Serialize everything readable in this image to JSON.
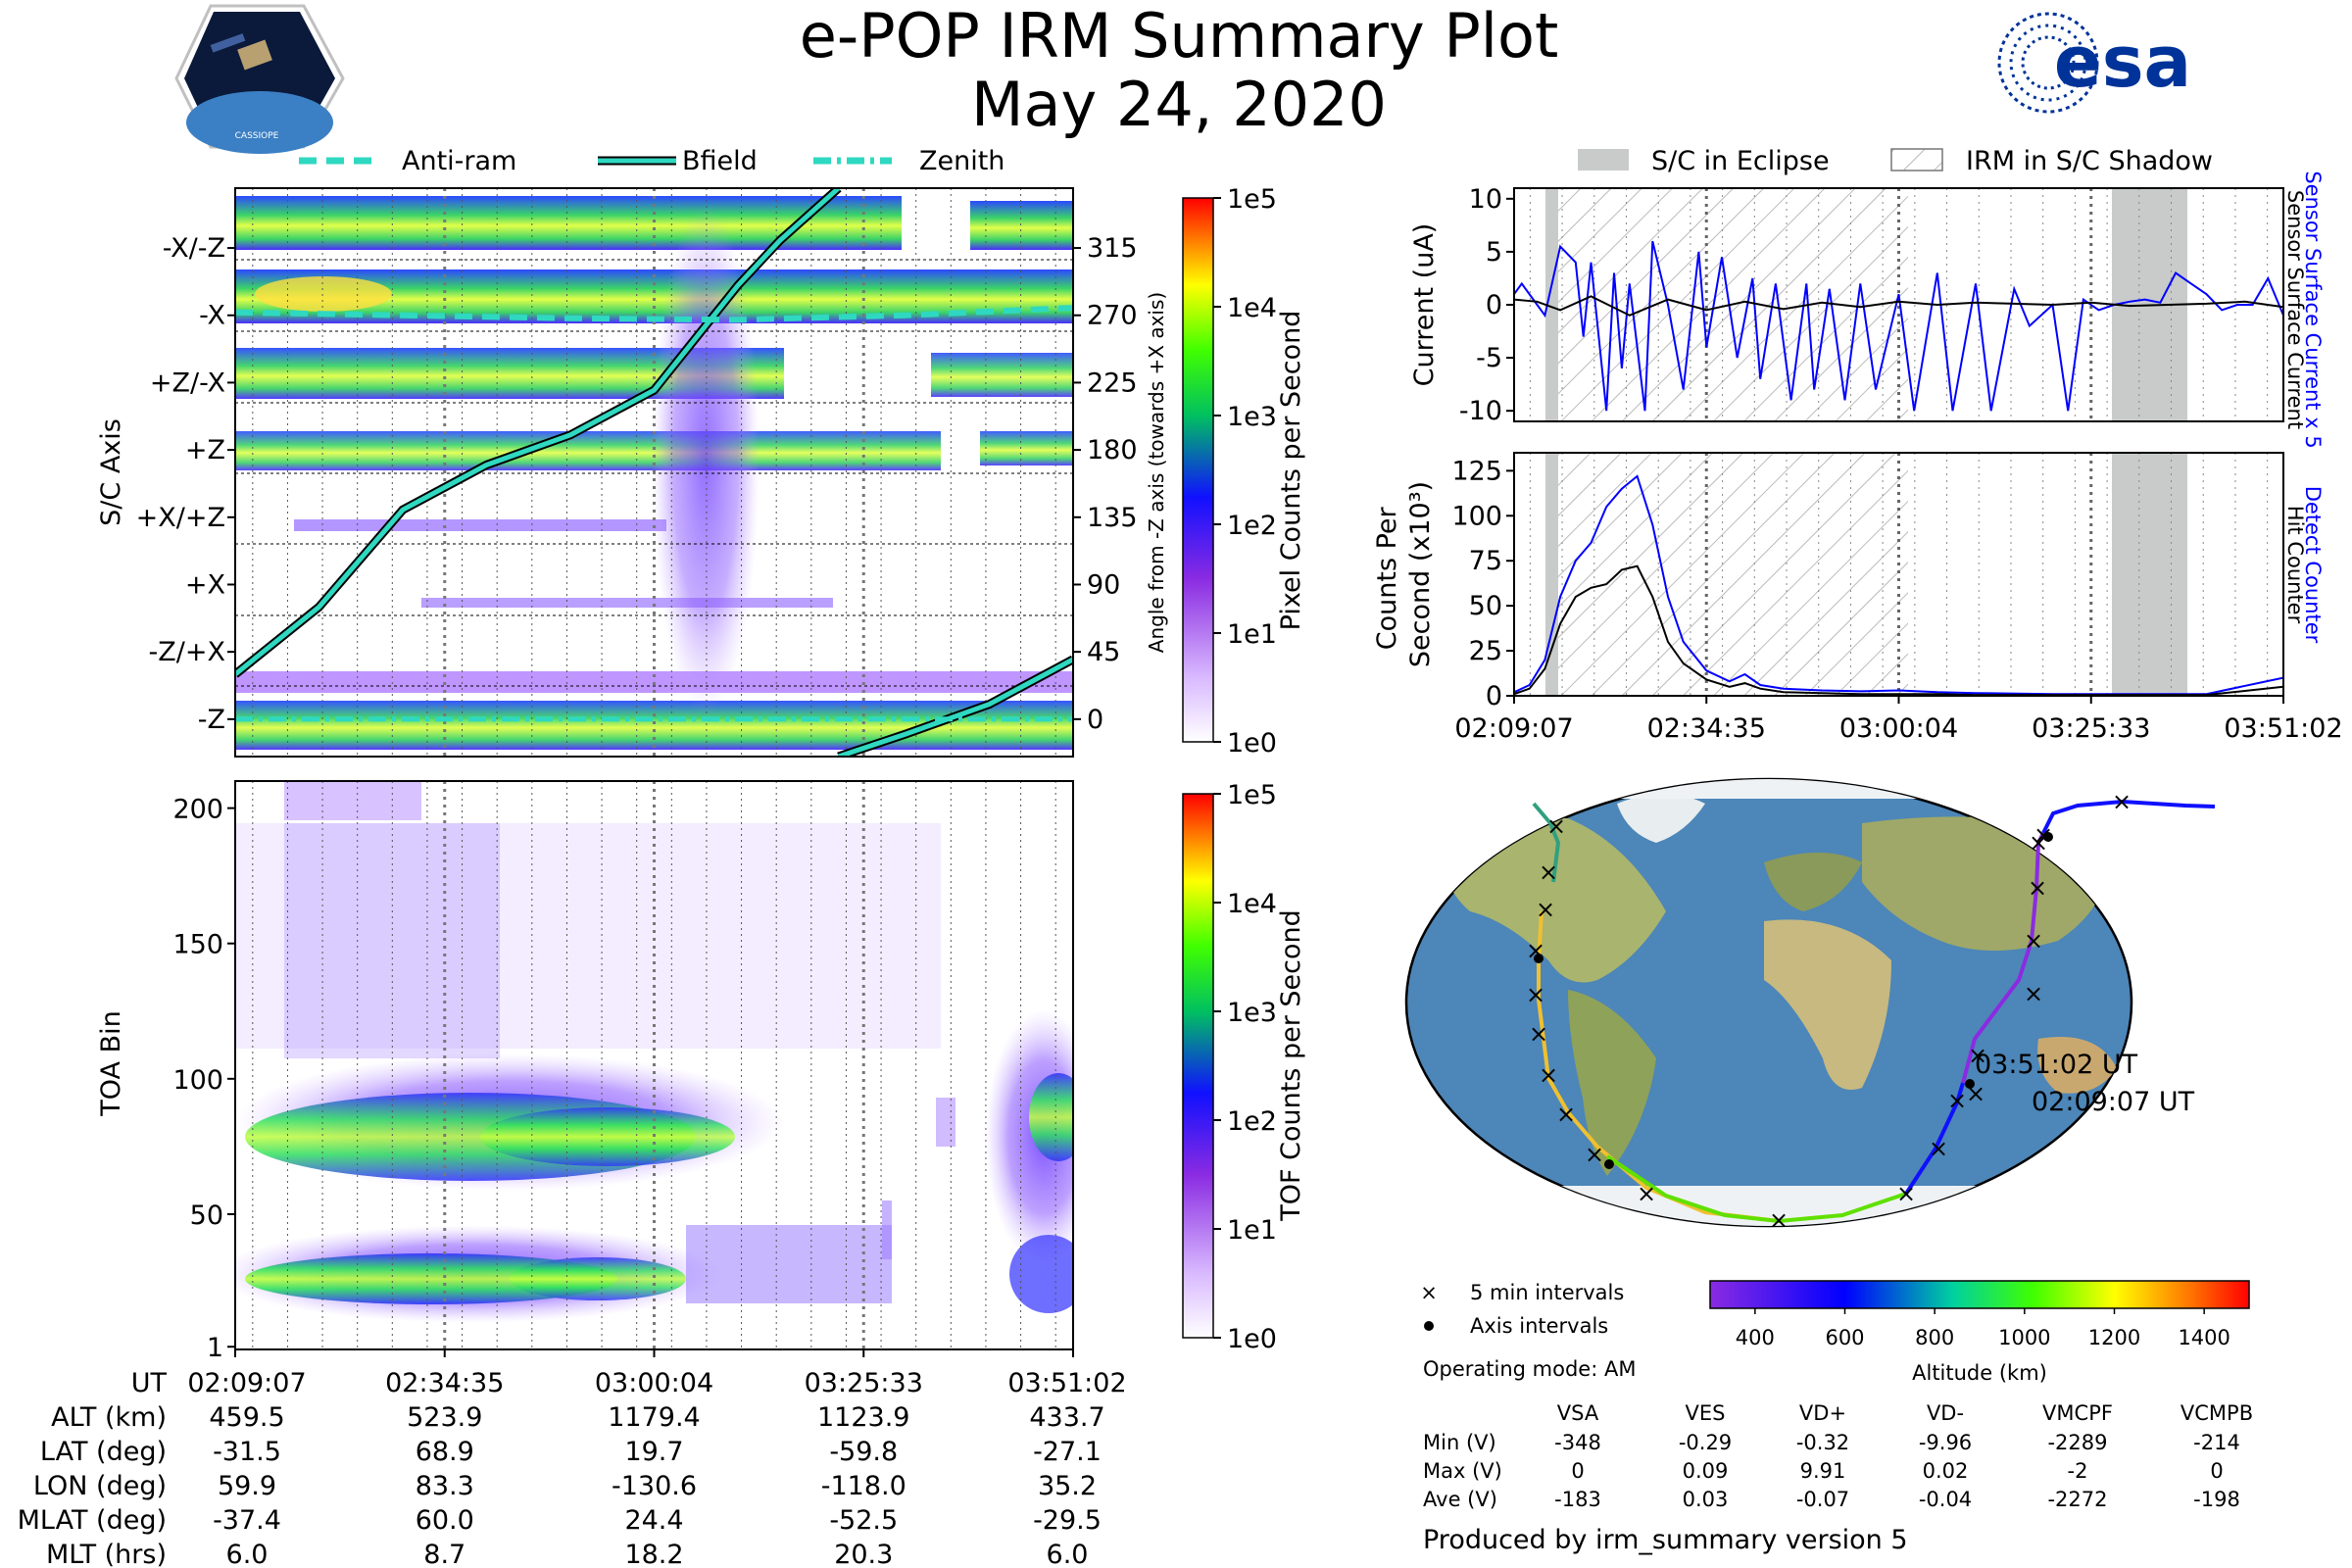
{
  "header": {
    "title": "e-POP IRM Summary Plot",
    "date": "May 24, 2020",
    "left_logo_text": "CASSIOPE",
    "right_logo_text": "esa"
  },
  "legend_top_left": [
    {
      "label": "Anti-ram",
      "style": "dashed"
    },
    {
      "label": "Bfield",
      "style": "solid"
    },
    {
      "label": "Zenith",
      "style": "dashdot"
    }
  ],
  "legend_top_right": [
    {
      "label": "S/C in Eclipse"
    },
    {
      "label": "IRM in S/C Shadow"
    }
  ],
  "colors": {
    "trace_cyan": "#2fd8c0",
    "blue_trace": "#0000ff",
    "eclipse_gray": "#c8cbca"
  },
  "chart_data": [
    {
      "type": "heatmap",
      "id": "sc-axis",
      "ylabel": "S/C Axis",
      "ytick_labels": [
        "-X/-Z",
        "-X",
        "+Z/-X",
        "+Z",
        "+X/+Z",
        "+X",
        "-Z/+X",
        "-Z"
      ],
      "right_ylabel": "Angle from -Z axis (towards +X axis)",
      "right_ticks": [
        315,
        270,
        225,
        180,
        135,
        90,
        45,
        0
      ],
      "right_ylim": [
        -25,
        355
      ],
      "colorbar_label": "Pixel Counts per Second",
      "colorbar_ticks": [
        "1e5",
        "1e4",
        "1e3",
        "1e2",
        "1e1",
        "1e0"
      ],
      "lines": {
        "Bfield": {
          "x_frac": [
            0,
            0.1,
            0.2,
            0.3,
            0.4,
            0.5,
            0.55,
            0.6,
            0.65,
            0.72
          ],
          "angle": [
            30,
            75,
            140,
            170,
            190,
            220,
            255,
            290,
            320,
            355
          ]
        },
        "Bfield_wrap": {
          "x_frac": [
            0.72,
            0.8,
            0.9,
            1.0
          ],
          "angle": [
            -25,
            -10,
            10,
            40
          ]
        },
        "Anti-ram": {
          "x_frac": [
            0,
            0.2,
            0.4,
            0.6,
            0.8,
            1.0
          ],
          "angle": [
            272,
            270,
            268,
            267,
            270,
            275
          ]
        },
        "Zenith": {
          "x_frac": [
            0,
            0.3,
            0.6,
            1.0
          ],
          "angle": [
            0,
            0,
            0,
            0
          ]
        }
      }
    },
    {
      "type": "heatmap",
      "id": "toa",
      "ylabel": "TOA Bin",
      "yticks": [
        1,
        50,
        100,
        150,
        200
      ],
      "ylim": [
        0,
        210
      ],
      "colorbar_label": "TOF Counts per Second",
      "colorbar_ticks": [
        "1e5",
        "1e4",
        "1e3",
        "1e2",
        "1e1",
        "1e0"
      ]
    },
    {
      "type": "line",
      "id": "current",
      "ylabel": "Current (uA)",
      "ylim": [
        -11,
        11
      ],
      "yticks": [
        10,
        5,
        0,
        -5,
        -10
      ],
      "right_label_1": "Sensor Surface Current x 5",
      "right_label_2": "Sensor Surface Current",
      "series": [
        {
          "name": "Sensor Surface Current x 5",
          "color": "#0000ff",
          "x_frac": [
            0,
            0.01,
            0.03,
            0.04,
            0.06,
            0.08,
            0.09,
            0.1,
            0.12,
            0.13,
            0.14,
            0.15,
            0.17,
            0.18,
            0.2,
            0.22,
            0.24,
            0.25,
            0.27,
            0.29,
            0.31,
            0.32,
            0.34,
            0.36,
            0.38,
            0.39,
            0.41,
            0.43,
            0.45,
            0.47,
            0.5,
            0.52,
            0.55,
            0.57,
            0.6,
            0.62,
            0.65,
            0.67,
            0.7,
            0.72,
            0.74,
            0.76,
            0.78,
            0.8,
            0.82,
            0.84,
            0.86,
            0.88,
            0.9,
            0.92,
            0.94,
            0.96,
            0.98,
            1.0
          ],
          "y": [
            1,
            2,
            0,
            -1,
            5.5,
            4,
            -3,
            4,
            -10,
            3,
            -6,
            2,
            -10,
            6,
            0,
            -8,
            5,
            -4,
            4.5,
            -5,
            2.5,
            -7,
            2,
            -9,
            2,
            -8,
            1.5,
            -9,
            2,
            -8,
            1,
            -10,
            3,
            -10,
            2,
            -10,
            1.5,
            -2,
            0,
            -10,
            0.5,
            -0.5,
            0,
            0.3,
            0.5,
            0.2,
            3,
            2,
            1,
            -0.5,
            0,
            0,
            2.5,
            -1
          ]
        },
        {
          "name": "Sensor Surface Current",
          "color": "#000000",
          "x_frac": [
            0,
            0.03,
            0.06,
            0.1,
            0.15,
            0.2,
            0.25,
            0.3,
            0.35,
            0.4,
            0.45,
            0.5,
            0.55,
            0.6,
            0.65,
            0.7,
            0.75,
            0.8,
            0.85,
            0.9,
            0.95,
            1.0
          ],
          "y": [
            0.5,
            0.3,
            -0.5,
            0.8,
            -1,
            0.5,
            -0.5,
            0.3,
            -0.4,
            0.2,
            -0.2,
            0.3,
            0,
            0.2,
            0.1,
            0,
            0.2,
            -0.1,
            0,
            0.1,
            0.3,
            -0.2
          ]
        }
      ]
    },
    {
      "type": "line",
      "id": "counts",
      "ylabel": "Counts Per Second (x10³)",
      "ylim": [
        0,
        135
      ],
      "yticks": [
        0,
        25,
        50,
        75,
        100,
        125
      ],
      "right_label_1": "Detect Counter",
      "right_label_2": "Hit Counter",
      "series": [
        {
          "name": "Detect Counter",
          "color": "#0000ff",
          "x_frac": [
            0,
            0.02,
            0.04,
            0.06,
            0.08,
            0.1,
            0.12,
            0.14,
            0.16,
            0.18,
            0.2,
            0.22,
            0.25,
            0.28,
            0.3,
            0.32,
            0.35,
            0.4,
            0.45,
            0.5,
            0.55,
            0.6,
            0.7,
            0.8,
            0.9,
            1.0
          ],
          "y": [
            2,
            6,
            20,
            55,
            75,
            85,
            105,
            115,
            122,
            95,
            55,
            30,
            14,
            8,
            12,
            6,
            4,
            3,
            2.5,
            3,
            2,
            1.5,
            1,
            1,
            1,
            10
          ]
        },
        {
          "name": "Hit Counter",
          "color": "#000000",
          "x_frac": [
            0,
            0.02,
            0.04,
            0.06,
            0.08,
            0.1,
            0.12,
            0.14,
            0.16,
            0.18,
            0.2,
            0.22,
            0.25,
            0.28,
            0.3,
            0.32,
            0.35,
            0.4,
            0.45,
            0.5,
            0.55,
            0.6,
            0.7,
            0.8,
            0.9,
            1.0
          ],
          "y": [
            1,
            4,
            15,
            40,
            55,
            60,
            62,
            70,
            72,
            55,
            30,
            18,
            9,
            5,
            7,
            4,
            2,
            1.5,
            1,
            1,
            1,
            0.5,
            0.5,
            0.5,
            0.5,
            5
          ]
        }
      ]
    }
  ],
  "time_ticks": [
    "02:09:07",
    "02:34:35",
    "03:00:04",
    "03:25:33",
    "03:51:02"
  ],
  "ephemeris": {
    "header": "UT",
    "rows": [
      {
        "label": "ALT (km)",
        "values": [
          "459.5",
          "523.9",
          "1179.4",
          "1123.9",
          "433.7"
        ]
      },
      {
        "label": "LAT (deg)",
        "values": [
          "-31.5",
          "68.9",
          "19.7",
          "-59.8",
          "-27.1"
        ]
      },
      {
        "label": "LON (deg)",
        "values": [
          "59.9",
          "83.3",
          "-130.6",
          "-118.0",
          "35.2"
        ]
      },
      {
        "label": "MLAT (deg)",
        "values": [
          "-37.4",
          "60.0",
          "24.4",
          "-52.5",
          "-29.5"
        ]
      },
      {
        "label": "MLT (hrs)",
        "values": [
          "6.0",
          "8.7",
          "18.2",
          "20.3",
          "6.0"
        ]
      }
    ]
  },
  "map": {
    "start_label": "02:09:07 UT",
    "end_label": "03:51:02 UT",
    "legend_5min": "5 min intervals",
    "legend_axis": "Axis intervals",
    "operating_mode": "Operating mode: AM",
    "altitude_label": "Altitude (km)",
    "altitude_ticks": [
      "400",
      "600",
      "800",
      "1000",
      "1200",
      "1400"
    ]
  },
  "voltage_table": {
    "columns": [
      "VSA",
      "VES",
      "VD+",
      "VD-",
      "VMCPF",
      "VCMPB"
    ],
    "rows": [
      {
        "label": "Min (V)",
        "values": [
          "-348",
          "-0.29",
          "-0.32",
          "-9.96",
          "-2289",
          "-214"
        ]
      },
      {
        "label": "Max (V)",
        "values": [
          "0",
          "0.09",
          "9.91",
          "0.02",
          "-2",
          "0"
        ]
      },
      {
        "label": "Ave (V)",
        "values": [
          "-183",
          "0.03",
          "-0.07",
          "-0.04",
          "-2272",
          "-198"
        ]
      }
    ]
  },
  "footer": "Produced by irm_summary version 5"
}
